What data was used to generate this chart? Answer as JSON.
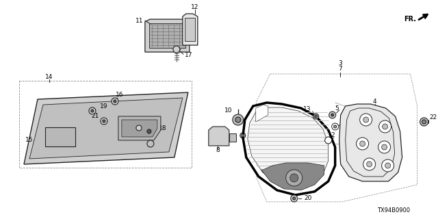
{
  "bg_color": "#ffffff",
  "line_color": "#222222",
  "part_number_code": "TX94B0900",
  "fr_label": "FR.",
  "gray_fill": "#d0d0d0",
  "light_fill": "#e8e8e8",
  "dark_fill": "#888888",
  "mid_fill": "#b0b0b0"
}
